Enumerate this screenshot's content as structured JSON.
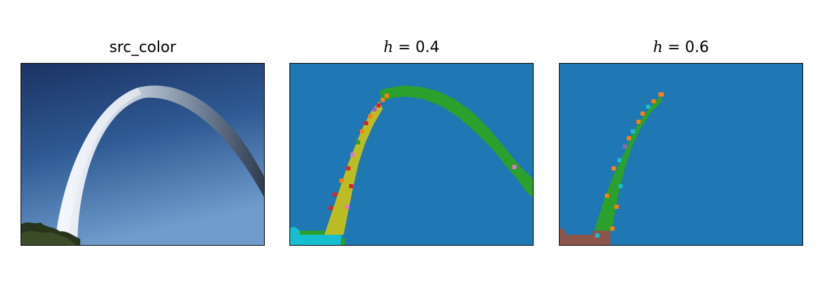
{
  "panels": [
    {
      "title": "src_color",
      "kind": "photo",
      "subject": "arch"
    },
    {
      "title_var": "h",
      "title_eq": " = 0.4",
      "kind": "segmentation"
    },
    {
      "title_var": "h",
      "title_eq": " = 0.6",
      "kind": "segmentation"
    }
  ],
  "colors": {
    "sky_top": "#1f3a6b",
    "sky_bottom": "#6f9ccc",
    "arch_light": "#e9eef6",
    "arch_dark": "#3d4d63",
    "trees": "#2e3a22",
    "seg_background": "#1f77b4",
    "seg_green": "#2ca02c",
    "seg_olive": "#bcbd22",
    "seg_cyan": "#17becf",
    "seg_orange": "#ff7f0e",
    "seg_red": "#d62728",
    "seg_purple": "#9467bd",
    "seg_pink": "#e377c2",
    "seg_brown": "#8c564b"
  }
}
